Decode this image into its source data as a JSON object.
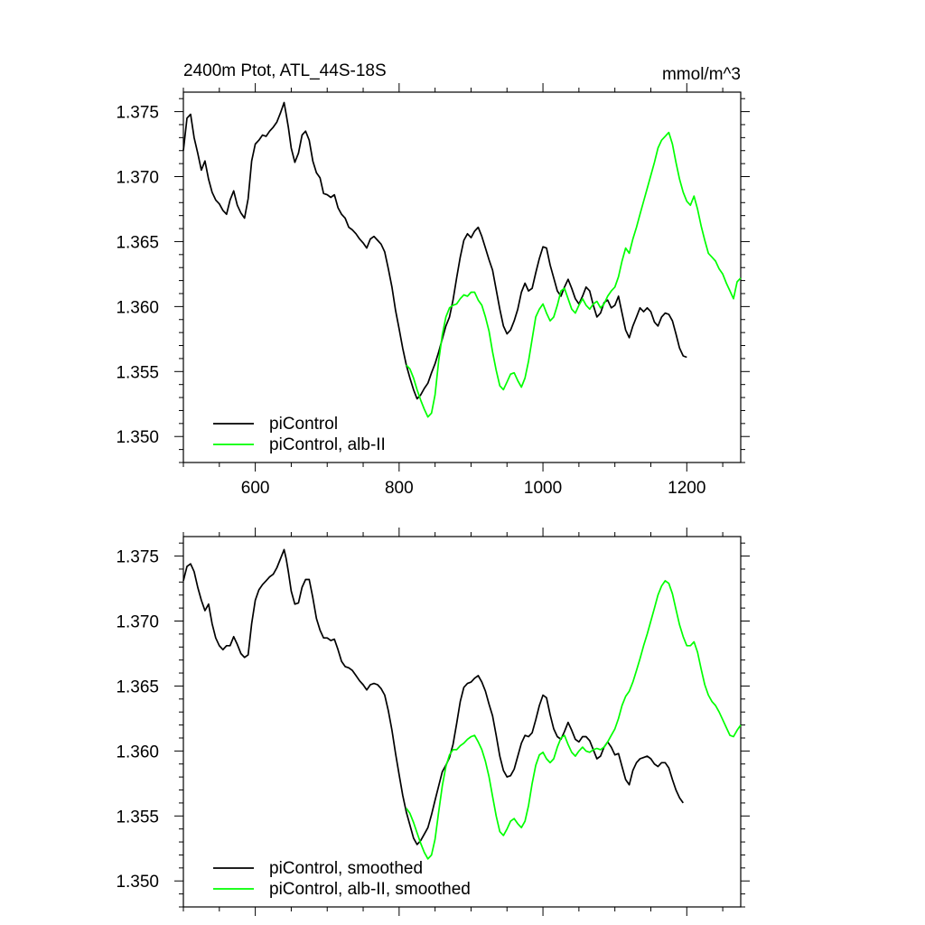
{
  "figure": {
    "title_left": "2400m Ptot, ATL_44S-18S",
    "title_right": "mmol/m^3"
  },
  "chart_data": [
    {
      "type": "line",
      "title": "2400m Ptot, ATL_44S-18S",
      "units": "mmol/m^3",
      "xlim": [
        500,
        1275
      ],
      "ylim": [
        1.348,
        1.3765
      ],
      "xticks": [
        600,
        800,
        1000,
        1200
      ],
      "xtick_labels": [
        "600",
        "800",
        "1000",
        "1200"
      ],
      "yticks": [
        1.35,
        1.355,
        1.36,
        1.365,
        1.37,
        1.375
      ],
      "ytick_labels": [
        "1.350",
        "1.355",
        "1.360",
        "1.365",
        "1.370",
        "1.375"
      ],
      "grid": false,
      "legend_position": "bottom-left",
      "series": [
        {
          "name": "piControl",
          "color": "#000000",
          "x": [
            500,
            505,
            510,
            515,
            520,
            525,
            530,
            535,
            540,
            545,
            550,
            555,
            560,
            565,
            570,
            575,
            580,
            585,
            590,
            595,
            600,
            605,
            610,
            615,
            620,
            625,
            630,
            635,
            640,
            643,
            646,
            650,
            655,
            660,
            665,
            670,
            675,
            680,
            685,
            690,
            695,
            700,
            705,
            710,
            715,
            720,
            725,
            730,
            735,
            740,
            745,
            750,
            755,
            760,
            765,
            770,
            775,
            780,
            785,
            790,
            795,
            800,
            805,
            810,
            815,
            820,
            825,
            830,
            835,
            840,
            845,
            850,
            855,
            860,
            865,
            870,
            875,
            880,
            885,
            890,
            895,
            900,
            905,
            910,
            915,
            920,
            925,
            930,
            935,
            940,
            945,
            950,
            955,
            960,
            965,
            970,
            975,
            980,
            985,
            990,
            995,
            1000,
            1005,
            1010,
            1015,
            1020,
            1025,
            1030,
            1035,
            1040,
            1045,
            1050,
            1055,
            1060,
            1065,
            1070,
            1075,
            1080,
            1085,
            1090,
            1095,
            1100,
            1105,
            1110,
            1115,
            1120,
            1125,
            1130,
            1135,
            1140,
            1145,
            1150,
            1155,
            1160,
            1165,
            1170,
            1175,
            1180,
            1185,
            1190,
            1195,
            1200
          ],
          "y": [
            1.372,
            1.3745,
            1.3748,
            1.373,
            1.3718,
            1.3705,
            1.3712,
            1.3698,
            1.3688,
            1.3682,
            1.3679,
            1.3674,
            1.3671,
            1.3682,
            1.3689,
            1.3678,
            1.3672,
            1.3668,
            1.3683,
            1.3712,
            1.3725,
            1.3728,
            1.3732,
            1.3731,
            1.3735,
            1.3738,
            1.3742,
            1.3749,
            1.3757,
            1.3748,
            1.3738,
            1.3722,
            1.3711,
            1.3718,
            1.3732,
            1.3735,
            1.3728,
            1.3712,
            1.3703,
            1.3699,
            1.3687,
            1.3686,
            1.3684,
            1.3686,
            1.3676,
            1.3671,
            1.3668,
            1.3661,
            1.3659,
            1.3656,
            1.3652,
            1.3649,
            1.3645,
            1.3652,
            1.3654,
            1.3651,
            1.3648,
            1.3642,
            1.3629,
            1.3615,
            1.3597,
            1.3583,
            1.3568,
            1.3555,
            1.3545,
            1.3536,
            1.3529,
            1.3532,
            1.3537,
            1.3541,
            1.3549,
            1.3556,
            1.3565,
            1.3575,
            1.3585,
            1.3592,
            1.3605,
            1.3622,
            1.3638,
            1.3651,
            1.3656,
            1.3653,
            1.3658,
            1.3661,
            1.3654,
            1.3645,
            1.3636,
            1.3628,
            1.3613,
            1.3598,
            1.3585,
            1.3579,
            1.3582,
            1.3589,
            1.3598,
            1.3611,
            1.3618,
            1.3612,
            1.3614,
            1.3626,
            1.3637,
            1.3646,
            1.3645,
            1.3632,
            1.3622,
            1.3612,
            1.3608,
            1.3615,
            1.3621,
            1.3614,
            1.3606,
            1.3602,
            1.3608,
            1.3615,
            1.3612,
            1.3601,
            1.3592,
            1.3595,
            1.3603,
            1.3605,
            1.3599,
            1.3601,
            1.3608,
            1.3595,
            1.3582,
            1.3576,
            1.3585,
            1.3592,
            1.3599,
            1.3596,
            1.3599,
            1.3596,
            1.3588,
            1.3585,
            1.3592,
            1.3595,
            1.3594,
            1.3589,
            1.3579,
            1.3568,
            1.3562,
            1.3561
          ]
        },
        {
          "name": "piControl, alb-II",
          "color": "#00ff00",
          "x": [
            810,
            815,
            820,
            825,
            830,
            835,
            840,
            845,
            850,
            855,
            860,
            865,
            870,
            875,
            880,
            885,
            890,
            895,
            900,
            905,
            910,
            915,
            920,
            925,
            930,
            935,
            940,
            945,
            950,
            955,
            960,
            965,
            970,
            975,
            980,
            985,
            990,
            995,
            1000,
            1005,
            1010,
            1015,
            1020,
            1025,
            1030,
            1035,
            1040,
            1045,
            1050,
            1055,
            1060,
            1065,
            1070,
            1075,
            1080,
            1085,
            1090,
            1095,
            1100,
            1105,
            1110,
            1115,
            1120,
            1125,
            1130,
            1135,
            1140,
            1145,
            1150,
            1155,
            1160,
            1165,
            1170,
            1175,
            1180,
            1185,
            1190,
            1195,
            1200,
            1205,
            1210,
            1215,
            1220,
            1225,
            1230,
            1235,
            1240,
            1245,
            1250,
            1255,
            1260,
            1265,
            1270,
            1275
          ],
          "y": [
            1.3555,
            1.3552,
            1.3545,
            1.3536,
            1.3528,
            1.3521,
            1.3515,
            1.3518,
            1.3532,
            1.3558,
            1.3578,
            1.3592,
            1.3599,
            1.3601,
            1.3602,
            1.3606,
            1.3609,
            1.3608,
            1.3611,
            1.3611,
            1.3605,
            1.3601,
            1.3592,
            1.3581,
            1.3565,
            1.3551,
            1.3539,
            1.3536,
            1.3542,
            1.3548,
            1.3549,
            1.3543,
            1.3538,
            1.3545,
            1.3558,
            1.3575,
            1.3592,
            1.3598,
            1.3602,
            1.3595,
            1.3589,
            1.3592,
            1.3601,
            1.3612,
            1.3614,
            1.3606,
            1.3598,
            1.3595,
            1.3601,
            1.3606,
            1.3601,
            1.3598,
            1.3602,
            1.3604,
            1.3599,
            1.3602,
            1.3608,
            1.3612,
            1.3615,
            1.3623,
            1.3635,
            1.3645,
            1.3641,
            1.3652,
            1.3661,
            1.3671,
            1.3681,
            1.3691,
            1.3701,
            1.3711,
            1.3722,
            1.3728,
            1.3731,
            1.3734,
            1.3725,
            1.3711,
            1.3698,
            1.3688,
            1.3681,
            1.3678,
            1.3685,
            1.3675,
            1.3662,
            1.3651,
            1.3641,
            1.3638,
            1.3635,
            1.3629,
            1.3625,
            1.3618,
            1.3612,
            1.3606,
            1.3619,
            1.3622
          ]
        }
      ]
    },
    {
      "type": "line",
      "xlim": [
        500,
        1275
      ],
      "ylim": [
        1.348,
        1.3765
      ],
      "xticks": [
        600,
        800,
        1000,
        1200
      ],
      "xtick_labels": [],
      "yticks": [
        1.35,
        1.355,
        1.36,
        1.365,
        1.37,
        1.375
      ],
      "ytick_labels": [
        "1.350",
        "1.355",
        "1.360",
        "1.365",
        "1.370",
        "1.375"
      ],
      "grid": false,
      "legend_position": "bottom-left",
      "series": [
        {
          "name": "piControl, smoothed",
          "color": "#000000",
          "x": [
            500,
            505,
            510,
            515,
            520,
            525,
            530,
            535,
            540,
            545,
            550,
            555,
            560,
            565,
            570,
            575,
            580,
            585,
            590,
            595,
            600,
            605,
            610,
            615,
            620,
            625,
            630,
            635,
            640,
            643,
            646,
            650,
            655,
            660,
            665,
            670,
            675,
            680,
            685,
            690,
            695,
            700,
            705,
            710,
            715,
            720,
            725,
            730,
            735,
            740,
            745,
            750,
            755,
            760,
            765,
            770,
            775,
            780,
            785,
            790,
            795,
            800,
            805,
            810,
            815,
            820,
            825,
            830,
            835,
            840,
            845,
            850,
            855,
            860,
            865,
            870,
            875,
            880,
            885,
            890,
            895,
            900,
            905,
            910,
            915,
            920,
            925,
            930,
            935,
            940,
            945,
            950,
            955,
            960,
            965,
            970,
            975,
            980,
            985,
            990,
            995,
            1000,
            1005,
            1010,
            1015,
            1020,
            1025,
            1030,
            1035,
            1040,
            1045,
            1050,
            1055,
            1060,
            1065,
            1070,
            1075,
            1080,
            1085,
            1090,
            1095,
            1100,
            1105,
            1110,
            1115,
            1120,
            1125,
            1130,
            1135,
            1140,
            1145,
            1150,
            1155,
            1160,
            1165,
            1170,
            1175,
            1180,
            1185,
            1190,
            1195
          ],
          "y": [
            1.3731,
            1.3742,
            1.3744,
            1.3738,
            1.3726,
            1.3716,
            1.3708,
            1.3713,
            1.3698,
            1.3687,
            1.3681,
            1.3678,
            1.3681,
            1.3681,
            1.3688,
            1.3682,
            1.3675,
            1.3672,
            1.3674,
            1.3698,
            1.3716,
            1.3724,
            1.3728,
            1.3731,
            1.3734,
            1.3736,
            1.3741,
            1.3748,
            1.3755,
            1.3748,
            1.3738,
            1.3723,
            1.3713,
            1.3714,
            1.3726,
            1.3732,
            1.3732,
            1.3718,
            1.3702,
            1.3693,
            1.3687,
            1.3687,
            1.3685,
            1.3686,
            1.3678,
            1.3669,
            1.3665,
            1.3664,
            1.3662,
            1.3658,
            1.3654,
            1.3651,
            1.3647,
            1.3651,
            1.3652,
            1.3651,
            1.3648,
            1.3643,
            1.3631,
            1.3616,
            1.3598,
            1.3582,
            1.3566,
            1.3553,
            1.3543,
            1.3533,
            1.3528,
            1.3531,
            1.3536,
            1.3541,
            1.3551,
            1.3562,
            1.3573,
            1.3584,
            1.3589,
            1.3595,
            1.3605,
            1.3621,
            1.3638,
            1.3649,
            1.3652,
            1.3653,
            1.3656,
            1.3658,
            1.3653,
            1.3646,
            1.3636,
            1.3627,
            1.3612,
            1.3596,
            1.3585,
            1.358,
            1.3581,
            1.3586,
            1.3596,
            1.3606,
            1.3612,
            1.3611,
            1.3614,
            1.3624,
            1.3635,
            1.3643,
            1.3641,
            1.3628,
            1.3617,
            1.3611,
            1.3609,
            1.3615,
            1.3622,
            1.3616,
            1.3609,
            1.3607,
            1.3611,
            1.3611,
            1.3608,
            1.3601,
            1.3594,
            1.3596,
            1.3603,
            1.3607,
            1.3603,
            1.3597,
            1.3598,
            1.3588,
            1.3578,
            1.3574,
            1.3585,
            1.3591,
            1.3594,
            1.3595,
            1.3596,
            1.3594,
            1.359,
            1.3588,
            1.3591,
            1.3591,
            1.3587,
            1.3578,
            1.357,
            1.3564,
            1.356
          ]
        },
        {
          "name": "piControl, alb-II, smoothed",
          "color": "#00ff00",
          "x": [
            810,
            815,
            820,
            825,
            830,
            835,
            840,
            845,
            850,
            855,
            860,
            865,
            870,
            875,
            880,
            885,
            890,
            895,
            900,
            905,
            910,
            915,
            920,
            925,
            930,
            935,
            940,
            945,
            950,
            955,
            960,
            965,
            970,
            975,
            980,
            985,
            990,
            995,
            1000,
            1005,
            1010,
            1015,
            1020,
            1025,
            1030,
            1035,
            1040,
            1045,
            1050,
            1055,
            1060,
            1065,
            1070,
            1075,
            1080,
            1085,
            1090,
            1095,
            1100,
            1105,
            1110,
            1115,
            1120,
            1125,
            1130,
            1135,
            1140,
            1145,
            1150,
            1155,
            1160,
            1165,
            1170,
            1175,
            1180,
            1185,
            1190,
            1195,
            1200,
            1205,
            1210,
            1215,
            1220,
            1225,
            1230,
            1235,
            1240,
            1245,
            1250,
            1255,
            1260,
            1265,
            1270,
            1275
          ],
          "y": [
            1.3556,
            1.3552,
            1.3545,
            1.3537,
            1.3529,
            1.3522,
            1.3517,
            1.352,
            1.3532,
            1.3553,
            1.3573,
            1.3588,
            1.3597,
            1.3601,
            1.3601,
            1.3604,
            1.3606,
            1.3609,
            1.3611,
            1.3612,
            1.3607,
            1.3601,
            1.3592,
            1.358,
            1.3565,
            1.355,
            1.3538,
            1.3535,
            1.354,
            1.3546,
            1.3548,
            1.3544,
            1.3541,
            1.3546,
            1.3558,
            1.3575,
            1.3589,
            1.3597,
            1.3599,
            1.3594,
            1.3591,
            1.3594,
            1.3603,
            1.361,
            1.3612,
            1.3605,
            1.3599,
            1.3596,
            1.36,
            1.3603,
            1.36,
            1.3599,
            1.3601,
            1.3602,
            1.3601,
            1.3603,
            1.3607,
            1.3612,
            1.3617,
            1.3625,
            1.3635,
            1.3642,
            1.3646,
            1.3653,
            1.3662,
            1.3671,
            1.3681,
            1.369,
            1.37,
            1.371,
            1.372,
            1.3727,
            1.3731,
            1.3729,
            1.3721,
            1.3709,
            1.3697,
            1.3688,
            1.3681,
            1.3681,
            1.3684,
            1.3676,
            1.3663,
            1.3651,
            1.3643,
            1.3638,
            1.3635,
            1.363,
            1.3624,
            1.3618,
            1.3612,
            1.3611,
            1.3616,
            1.362
          ]
        }
      ]
    }
  ]
}
